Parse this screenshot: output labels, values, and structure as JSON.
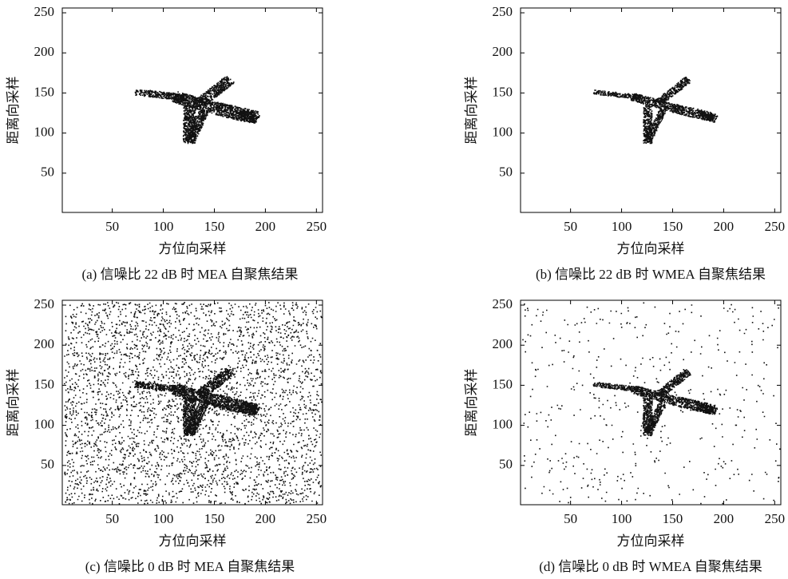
{
  "chart_data": [
    {
      "type": "image",
      "caption": "(a) 信噪比 22 dB 时 MEA 自聚焦结果",
      "xlabel": "方位向采样",
      "ylabel": "距离向采样",
      "xlim": [
        1,
        256
      ],
      "ylim": [
        1,
        256
      ],
      "xticks": [
        50,
        100,
        150,
        200,
        250
      ],
      "yticks": [
        50,
        100,
        150,
        200,
        250
      ]
    },
    {
      "type": "image",
      "caption": "(b) 信噪比 22 dB 时 WMEA 自聚焦结果",
      "xlabel": "方位向采样",
      "ylabel": "距离向采样",
      "xlim": [
        1,
        256
      ],
      "ylim": [
        1,
        256
      ],
      "xticks": [
        50,
        100,
        150,
        200,
        250
      ],
      "yticks": [
        50,
        100,
        150,
        200,
        250
      ]
    },
    {
      "type": "image",
      "caption": "(c) 信噪比 0 dB 时 MEA 自聚焦结果",
      "xlabel": "方位向采样",
      "ylabel": "距离向采样",
      "xlim": [
        1,
        256
      ],
      "ylim": [
        1,
        256
      ],
      "xticks": [
        50,
        100,
        150,
        200,
        250
      ],
      "yticks": [
        50,
        100,
        150,
        200,
        250
      ]
    },
    {
      "type": "image",
      "caption": "(d) 信噪比 0 dB 时 WMEA 自聚焦结果",
      "xlabel": "方位向采样",
      "ylabel": "距离向采样",
      "xlim": [
        1,
        256
      ],
      "ylim": [
        1,
        256
      ],
      "xticks": [
        50,
        100,
        150,
        200,
        250
      ],
      "yticks": [
        50,
        100,
        150,
        200,
        250
      ]
    }
  ]
}
